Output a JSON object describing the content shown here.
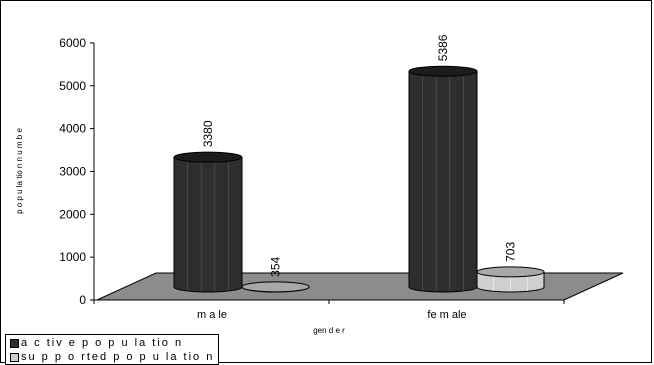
{
  "chart_data": {
    "type": "bar",
    "title": "",
    "xlabel": "gen d e r",
    "ylabel": "p o p u la tio n n u m b e",
    "categories": [
      "m a le",
      "fe m ale"
    ],
    "series": [
      {
        "name": "a c tiv e  p o p u la tio n",
        "values": [
          3380,
          5386
        ],
        "color": "#2e2e2e"
      },
      {
        "name": "su p p o rted  p o p u la tio n",
        "values": [
          354,
          703
        ],
        "color": "#cfcfcf"
      }
    ],
    "ylim": [
      0,
      6000
    ],
    "yticks": [
      "0",
      "1000",
      "2000",
      "3000",
      "4000",
      "5000",
      "6000"
    ],
    "data_labels": [
      "3380",
      "354",
      "5386",
      "703"
    ],
    "legend_position": "bottom-left",
    "grid": false,
    "floor_color": "#8c8c8c"
  }
}
